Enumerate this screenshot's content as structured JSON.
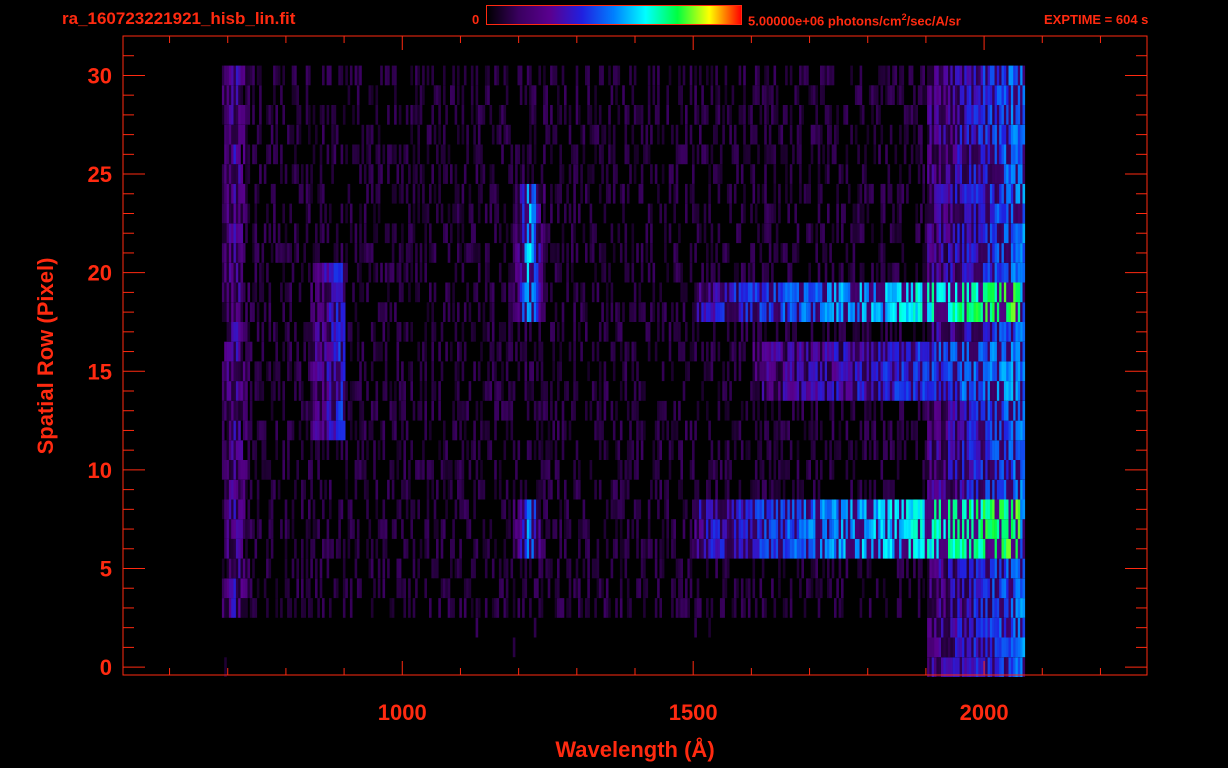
{
  "header": {
    "file_title": "ra_160723221921_hisb_lin.fit",
    "colorbar_min": "0",
    "colorbar_max_label_pre": "5.00000e+06 photons/cm",
    "colorbar_max_label_sup": "2",
    "colorbar_max_label_post": "/sec/A/sr",
    "exptime": "EXPTIME = 604 s"
  },
  "colors": {
    "text": "#ff2a10",
    "axis": "#ff2a10",
    "background": "#000000",
    "colormap": [
      "#000000",
      "#3a0060",
      "#5a0090",
      "#2020e0",
      "#0080ff",
      "#00ffff",
      "#00ff40",
      "#ffff00",
      "#ff0000"
    ]
  },
  "chart_data": {
    "type": "heatmap",
    "title": "ra_160723221921_hisb_lin.fit",
    "xlabel": "Wavelength (Å)",
    "ylabel": "Spatial Row (Pixel)",
    "xlim": [
      520,
      2280
    ],
    "ylim": [
      -0.4,
      32
    ],
    "x_ticks": [
      1000,
      1500,
      2000
    ],
    "y_ticks": [
      0,
      5,
      10,
      15,
      20,
      25,
      30
    ],
    "colorbar": {
      "min": 0,
      "max": 5000000,
      "units": "photons/cm²/sec/A/sr"
    },
    "data_x_range": [
      690,
      2070
    ],
    "data_y_range": [
      0,
      30
    ],
    "features": [
      {
        "wavelength": 1216,
        "rows": [
          18,
          24
        ],
        "peak_intensity": 0.55
      },
      {
        "wavelength": 1216,
        "rows": [
          6,
          8
        ],
        "peak_intensity": 0.45
      },
      {
        "wavelength_range": [
          1500,
          2060
        ],
        "rows": [
          18,
          19
        ],
        "peak_intensity": 0.7
      },
      {
        "wavelength_range": [
          1500,
          2060
        ],
        "rows": [
          6,
          8
        ],
        "peak_intensity": 0.7
      },
      {
        "wavelength_range": [
          1600,
          2060
        ],
        "rows": [
          14,
          16
        ],
        "peak_intensity": 0.45
      },
      {
        "wavelength_range": [
          840,
          900
        ],
        "rows": [
          12,
          20
        ],
        "peak_intensity": 0.35
      },
      {
        "wavelength": 710,
        "rows": [
          3,
          30
        ],
        "peak_intensity": 0.25
      }
    ]
  }
}
